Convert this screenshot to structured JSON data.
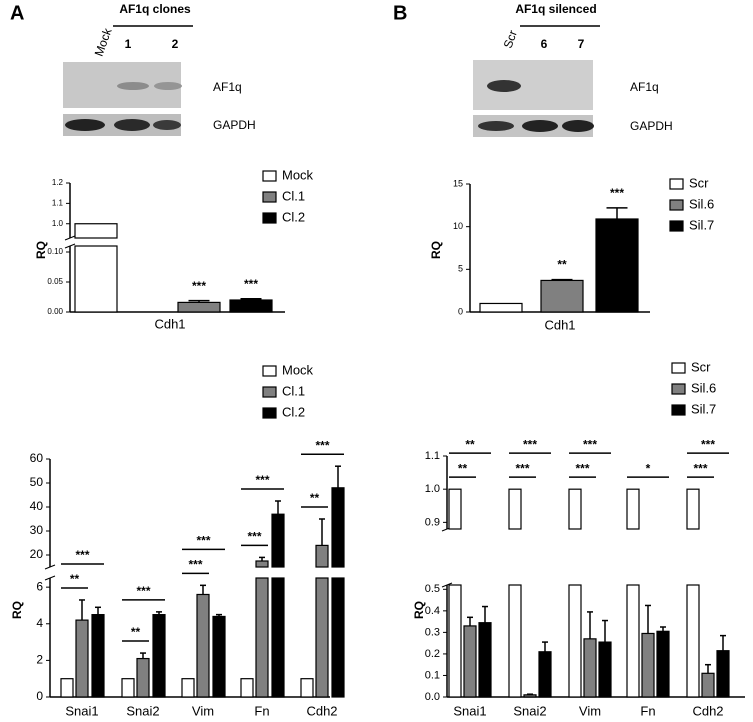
{
  "panel_labels": [
    "A",
    "B"
  ],
  "blots": [
    {
      "title": "AF1q clones",
      "lanes": [
        "Mock",
        "1",
        "2"
      ],
      "rows": [
        "AF1q",
        "GAPDH"
      ]
    },
    {
      "title": "AF1q silenced",
      "lanes": [
        "Scr",
        "6",
        "7"
      ],
      "rows": [
        "AF1q",
        "GAPDH"
      ]
    }
  ],
  "chart_data": [
    {
      "type": "bar",
      "ylabel": "RQ",
      "categories": [
        "Cdh1"
      ],
      "y_segments": [
        {
          "ylim": [
            0,
            0.11
          ],
          "yticks": [
            {
              "value": 0,
              "label": "0.00"
            },
            {
              "value": 0.05,
              "label": "0.05"
            },
            {
              "value": 0.1,
              "label": "0.10"
            }
          ]
        },
        {
          "ylim": [
            0.93,
            1.2
          ],
          "yticks": [
            {
              "value": 1,
              "label": "1.0"
            },
            {
              "value": 1.1,
              "label": "1.1"
            },
            {
              "value": 1.2,
              "label": "1.2"
            }
          ]
        }
      ],
      "series": [
        {
          "name": "Mock",
          "color": "#ffffff",
          "values": [
            1
          ],
          "errors": [
            0
          ]
        },
        {
          "name": "Cl.1",
          "color": "#808080",
          "values": [
            0.016
          ],
          "errors": [
            0.003
          ],
          "annotations": [
            "***"
          ]
        },
        {
          "name": "Cl.2",
          "color": "#000000",
          "values": [
            0.02
          ],
          "errors": [
            0.002
          ],
          "annotations": [
            "***"
          ]
        }
      ]
    },
    {
      "type": "bar",
      "ylabel": "RQ",
      "categories": [
        "Cdh1"
      ],
      "ylim": [
        0,
        15
      ],
      "yticks": [
        0,
        5,
        10,
        15
      ],
      "series": [
        {
          "name": "Scr",
          "color": "#ffffff",
          "values": [
            1
          ],
          "errors": [
            0
          ]
        },
        {
          "name": "Sil.6",
          "color": "#808080",
          "values": [
            3.7
          ],
          "errors": [
            0.1
          ],
          "annotations": [
            "**"
          ]
        },
        {
          "name": "Sil.7",
          "color": "#000000",
          "values": [
            10.9
          ],
          "errors": [
            1.3
          ],
          "annotations": [
            "***"
          ]
        }
      ]
    },
    {
      "type": "bar",
      "ylabel": "RQ",
      "categories": [
        "Snai1",
        "Snai2",
        "Vim",
        "Fn",
        "Cdh2"
      ],
      "y_segments": [
        {
          "ylim": [
            0,
            6.5
          ],
          "yticks": [
            0,
            2,
            4,
            6
          ]
        },
        {
          "ylim": [
            15,
            60
          ],
          "yticks": [
            20,
            30,
            40,
            50,
            60
          ]
        }
      ],
      "series": [
        {
          "name": "Mock",
          "color": "#ffffff",
          "values": [
            1,
            1,
            1,
            1,
            1
          ],
          "errors": [
            0,
            0,
            0,
            0,
            0
          ]
        },
        {
          "name": "Cl.1",
          "color": "#808080",
          "values": [
            4.2,
            2.1,
            5.6,
            17.5,
            24
          ],
          "errors": [
            1.1,
            0.3,
            0.5,
            1.5,
            11
          ]
        },
        {
          "name": "Cl.2",
          "color": "#000000",
          "values": [
            4.5,
            4.5,
            4.4,
            37,
            48
          ],
          "errors": [
            0.4,
            0.15,
            0.1,
            5.5,
            9
          ]
        }
      ],
      "significance": [
        [
          "**",
          "***"
        ],
        [
          "**",
          "***"
        ],
        [
          "***",
          "***"
        ],
        [
          "***",
          "***"
        ],
        [
          "**",
          "***"
        ]
      ]
    },
    {
      "type": "bar",
      "ylabel": "RQ",
      "categories": [
        "Snai1",
        "Snai2",
        "Vim",
        "Fn",
        "Cdh2"
      ],
      "y_segments": [
        {
          "ylim": [
            0,
            0.52
          ],
          "yticks": [
            {
              "value": 0,
              "label": "0.0"
            },
            {
              "value": 0.1,
              "label": "0.1"
            },
            {
              "value": 0.2,
              "label": "0.2"
            },
            {
              "value": 0.3,
              "label": "0.3"
            },
            {
              "value": 0.4,
              "label": "0.4"
            },
            {
              "value": 0.5,
              "label": "0.5"
            }
          ]
        },
        {
          "ylim": [
            0.88,
            1.1
          ],
          "yticks": [
            {
              "value": 0.9,
              "label": "0.9"
            },
            {
              "value": 1,
              "label": "1.0"
            },
            {
              "value": 1.1,
              "label": "1.1"
            }
          ]
        }
      ],
      "series": [
        {
          "name": "Scr",
          "color": "#ffffff",
          "values": [
            1,
            1,
            1,
            1,
            1
          ],
          "errors": [
            0,
            0,
            0,
            0,
            0
          ]
        },
        {
          "name": "Sil.6",
          "color": "#808080",
          "values": [
            0.33,
            0.01,
            0.27,
            0.295,
            0.11
          ],
          "errors": [
            0.04,
            0.003,
            0.125,
            0.13,
            0.04
          ]
        },
        {
          "name": "Sil.7",
          "color": "#000000",
          "values": [
            0.345,
            0.21,
            0.255,
            0.305,
            0.215
          ],
          "errors": [
            0.075,
            0.045,
            0.1,
            0.02,
            0.07
          ]
        }
      ],
      "significance": [
        [
          "**",
          "**"
        ],
        [
          "***",
          "***"
        ],
        [
          "***",
          "***"
        ],
        [
          "*"
        ],
        [
          "***",
          "***"
        ]
      ]
    }
  ]
}
